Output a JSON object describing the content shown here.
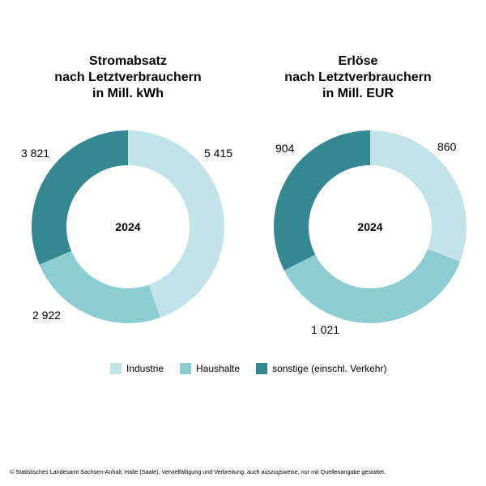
{
  "footer": "© Statistisches Landesamt Sachsen-Anhalt, Halle (Saale), Vervielfältigung und Verbreitung, auch auszugsweise, nur mit Quellenangabe gestattet.",
  "legend": [
    {
      "label": "Industrie",
      "color": "#c2e3e7"
    },
    {
      "label": "Haushalte",
      "color": "#8ccdd2"
    },
    {
      "label": "sonstige (einschl. Verkehr)",
      "color": "#358891"
    }
  ],
  "chart_data": [
    {
      "type": "pie",
      "title_lines": [
        "Stromabsatz",
        "nach Letztverbrauchern",
        "in Mill. kWh"
      ],
      "center_label": "2024",
      "categories": [
        "Industrie",
        "Haushalte",
        "sonstige (einschl. Verkehr)"
      ],
      "values": [
        5415,
        2922,
        3821
      ],
      "value_labels": [
        "5 415",
        "2 922",
        "3 821"
      ],
      "colors": [
        "#c2e3e7",
        "#8ccdd2",
        "#358891"
      ]
    },
    {
      "type": "pie",
      "title_lines": [
        "Erlöse",
        "nach Letztverbrauchern",
        "in Mill. EUR"
      ],
      "center_label": "2024",
      "categories": [
        "Industrie",
        "Haushalte",
        "sonstige (einschl. Verkehr)"
      ],
      "values": [
        860,
        1021,
        904
      ],
      "value_labels": [
        "860",
        "1 021",
        "904"
      ],
      "colors": [
        "#c2e3e7",
        "#8ccdd2",
        "#358891"
      ]
    }
  ]
}
